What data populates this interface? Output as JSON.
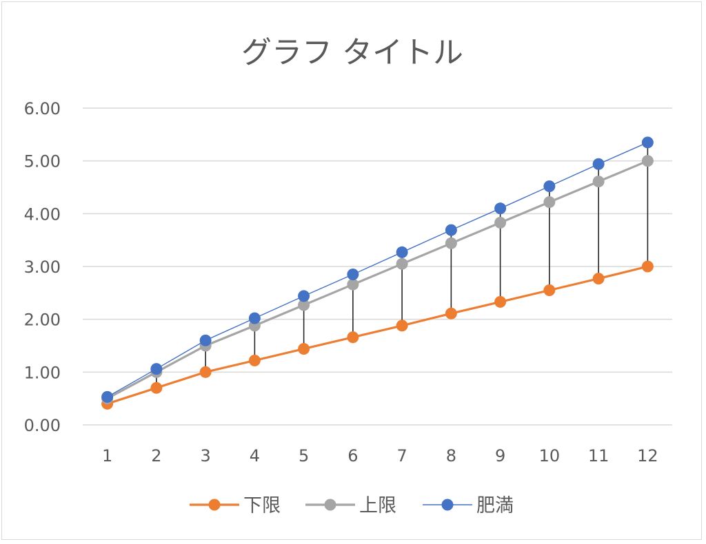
{
  "chart_data": {
    "type": "line",
    "title": "グラフ タイトル",
    "x": [
      1,
      2,
      3,
      4,
      5,
      6,
      7,
      8,
      9,
      10,
      11,
      12
    ],
    "ylim": [
      0,
      6
    ],
    "yticks": [
      "0.00",
      "1.00",
      "2.00",
      "3.00",
      "4.00",
      "5.00",
      "6.00"
    ],
    "grid": true,
    "legend_position": "bottom",
    "high_low_lines": true,
    "series": [
      {
        "name": "下限",
        "color": "#ED7D31",
        "values": [
          0.4,
          0.7,
          1.0,
          1.22,
          1.44,
          1.66,
          1.88,
          2.11,
          2.33,
          2.55,
          2.77,
          3.0
        ]
      },
      {
        "name": "上限",
        "color": "#A5A5A5",
        "values": [
          0.5,
          1.0,
          1.5,
          1.88,
          2.27,
          2.66,
          3.05,
          3.44,
          3.83,
          4.22,
          4.61,
          5.0
        ]
      },
      {
        "name": "肥満",
        "color": "#4472C4",
        "values": [
          0.53,
          1.06,
          1.6,
          2.02,
          2.44,
          2.85,
          3.27,
          3.69,
          4.1,
          4.52,
          4.94,
          5.35
        ]
      }
    ]
  }
}
